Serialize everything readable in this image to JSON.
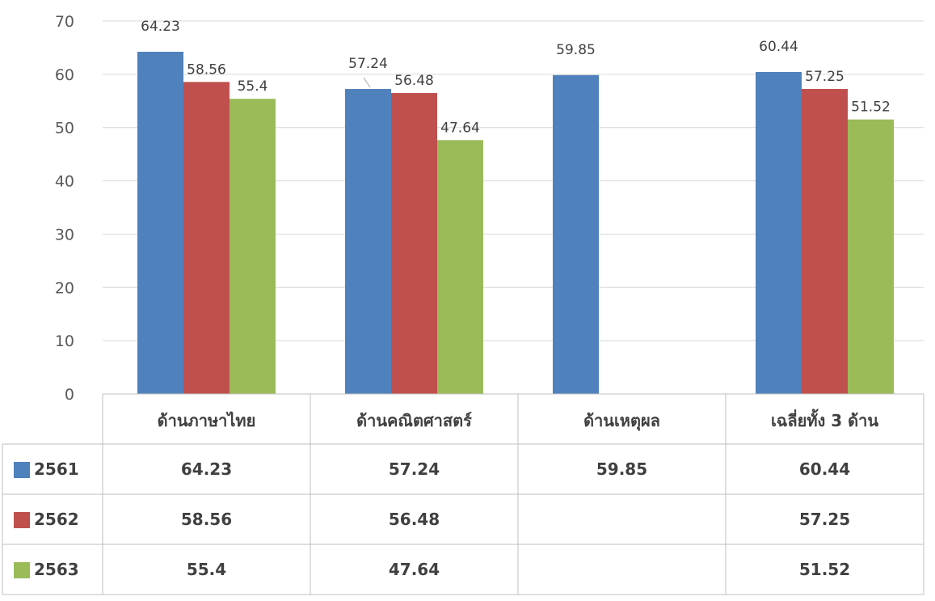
{
  "chart_data": {
    "type": "bar",
    "categories": [
      "ด้านภาษาไทย",
      "ด้านคณิตศาสตร์",
      "ด้านเหตุผล",
      "เฉลี่ยทั้ง 3 ด้าน"
    ],
    "series": [
      {
        "name": "2561",
        "color": "#4F81BD",
        "values": [
          64.23,
          57.24,
          59.85,
          60.44
        ],
        "labels": [
          "64.23",
          "57.24",
          "59.85",
          "60.44"
        ]
      },
      {
        "name": "2562",
        "color": "#C0504D",
        "values": [
          58.56,
          56.48,
          null,
          57.25
        ],
        "labels": [
          "58.56",
          "56.48",
          "",
          "57.25"
        ]
      },
      {
        "name": "2563",
        "color": "#9BBB59",
        "values": [
          55.4,
          47.64,
          null,
          51.52
        ],
        "labels": [
          "55.4",
          "47.64",
          "",
          "51.52"
        ]
      }
    ],
    "y_ticks": [
      "0",
      "10",
      "20",
      "30",
      "40",
      "50",
      "60",
      "70"
    ],
    "ylim": [
      0,
      70
    ],
    "grid": true,
    "legend": "data-table"
  }
}
